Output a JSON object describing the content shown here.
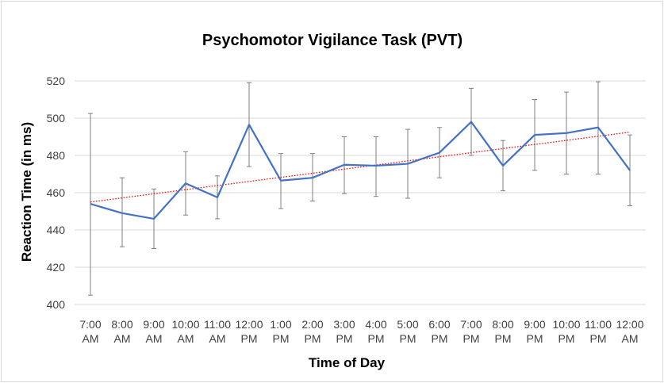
{
  "chart_data": {
    "type": "line",
    "title": "Psychomotor Vigilance Task (PVT)",
    "xlabel": "Time of Day",
    "ylabel": "Reaction Time (in ms)",
    "ylim": [
      400,
      520
    ],
    "yticks": [
      400,
      420,
      440,
      460,
      480,
      500,
      520
    ],
    "grid": "horizontal",
    "categories": [
      [
        "7:00",
        "AM"
      ],
      [
        "8:00",
        "AM"
      ],
      [
        "9:00",
        "AM"
      ],
      [
        "10:00",
        "AM"
      ],
      [
        "11:00",
        "AM"
      ],
      [
        "12:00",
        "PM"
      ],
      [
        "1:00",
        "PM"
      ],
      [
        "2:00",
        "PM"
      ],
      [
        "3:00",
        "PM"
      ],
      [
        "4:00",
        "PM"
      ],
      [
        "5:00",
        "PM"
      ],
      [
        "6:00",
        "PM"
      ],
      [
        "7:00",
        "PM"
      ],
      [
        "8:00",
        "PM"
      ],
      [
        "9:00",
        "PM"
      ],
      [
        "10:00",
        "PM"
      ],
      [
        "11:00",
        "PM"
      ],
      [
        "12:00",
        "AM"
      ]
    ],
    "series": [
      {
        "color": "#4472c4",
        "values": [
          454,
          449,
          446,
          465,
          457.5,
          496.5,
          466.5,
          468,
          475,
          474.5,
          475.5,
          481.5,
          498,
          474.5,
          491,
          492,
          495,
          472
        ],
        "error_low": [
          405,
          431,
          430,
          448,
          446,
          474,
          451.5,
          455.5,
          459.5,
          458,
          457,
          468,
          480,
          461,
          472,
          470,
          470,
          453
        ],
        "error_high": [
          502.5,
          468,
          462,
          482,
          469,
          519,
          481,
          481,
          490,
          490,
          494,
          495,
          516,
          488,
          510,
          514,
          519.5,
          491
        ]
      }
    ],
    "trendline": {
      "type": "linear",
      "color": "#ff0000",
      "style": "dotted",
      "start": 455,
      "end": 492.5
    }
  }
}
